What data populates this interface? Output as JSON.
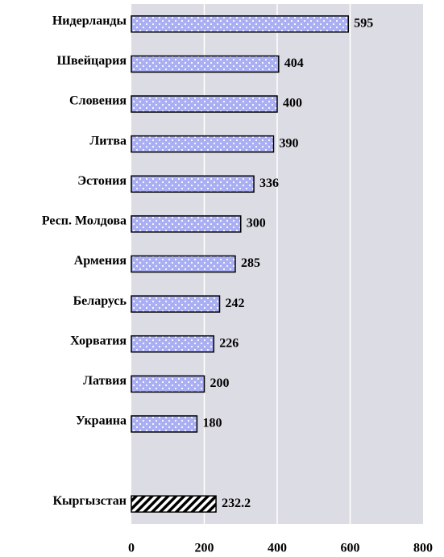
{
  "chart_data": {
    "type": "bar",
    "orientation": "horizontal",
    "categories": [
      "Нидерланды",
      "Швейцария",
      "Словения",
      "Литва",
      "Эстония",
      "Респ. Молдова",
      "Армения",
      "Беларусь",
      "Хорватия",
      "Латвия",
      "Украина",
      null,
      "Кыргызстан"
    ],
    "values": [
      595,
      404,
      400,
      390,
      336,
      300,
      285,
      242,
      226,
      200,
      180,
      null,
      232.2
    ],
    "colors": [
      "#a9aff2",
      "#a9aff2",
      "#a9aff2",
      "#a9aff2",
      "#a9aff2",
      "#a9aff2",
      "#a9aff2",
      "#a9aff2",
      "#a9aff2",
      "#a9aff2",
      "#a9aff2",
      null,
      "#000000"
    ],
    "patterns": [
      "checkered",
      "checkered",
      "checkered",
      "checkered",
      "checkered",
      "checkered",
      "checkered",
      "checkered",
      "checkered",
      "checkered",
      "checkered",
      null,
      "hatched"
    ],
    "xlim": [
      0,
      800
    ],
    "xticks": [
      0,
      200,
      400,
      600,
      800
    ],
    "grid": true
  }
}
